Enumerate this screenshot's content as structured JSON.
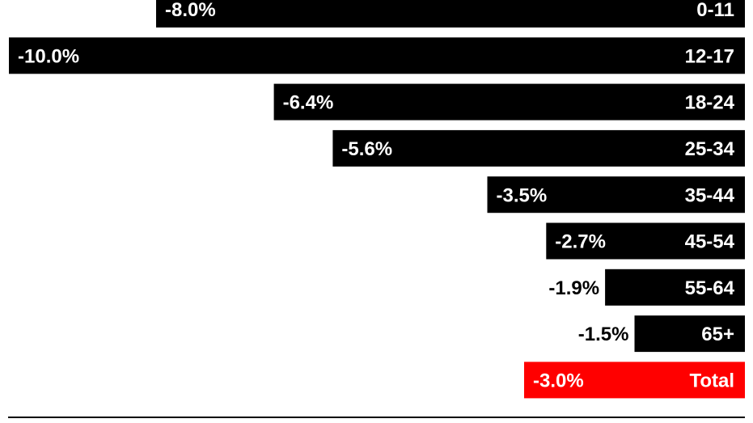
{
  "chart_data": {
    "type": "bar",
    "orientation": "horizontal",
    "direction": "negative-left",
    "categories": [
      "0-11",
      "12-17",
      "18-24",
      "25-34",
      "35-44",
      "45-54",
      "55-64",
      "65+",
      "Total"
    ],
    "values": [
      -8.0,
      -10.0,
      -6.4,
      -5.6,
      -3.5,
      -2.7,
      -1.9,
      -1.5,
      -3.0
    ],
    "value_labels": [
      "-8.0%",
      "-10.0%",
      "-6.4%",
      "-5.6%",
      "-3.5%",
      "-2.7%",
      "-1.9%",
      "-1.5%",
      "-3.0%"
    ],
    "xlim": [
      -10.0,
      0
    ],
    "grid": false,
    "colors": {
      "bar": "#000000",
      "highlight_bar": "#ff0000",
      "label_on_bar": "#ffffff",
      "label_outside": "#000000",
      "baseline": "#000000"
    },
    "highlight_category": "Total",
    "footnote_text": ""
  }
}
